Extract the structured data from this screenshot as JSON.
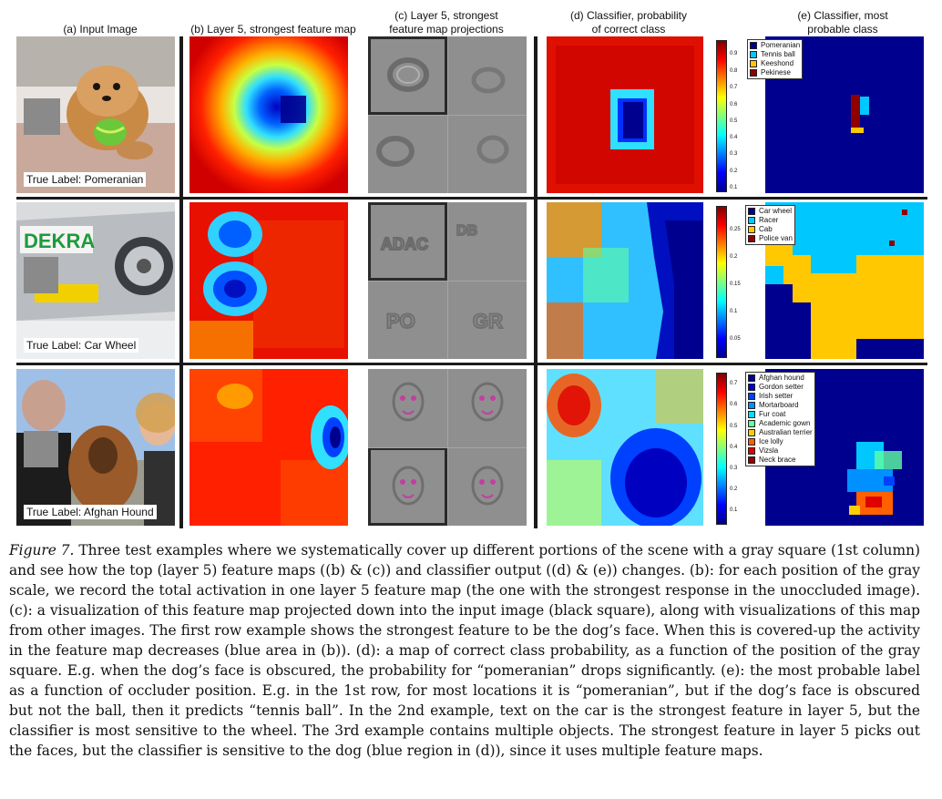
{
  "figure": {
    "column_titles": {
      "a": "(a) Input Image",
      "b": "(b) Layer 5, strongest feature map",
      "c_line1": "(c) Layer 5, strongest",
      "c_line2": "feature map projections",
      "d_line1": "(d) Classifier, probability",
      "d_line2": "of correct class",
      "e_line1": "(e) Classifier, most",
      "e_line2": "probable class"
    },
    "rows": [
      {
        "true_label": "True Label: Pomeranian",
        "colorbar_ticks": [
          "0.9",
          "0.8",
          "0.7",
          "0.6",
          "0.5",
          "0.4",
          "0.3",
          "0.2",
          "0.1"
        ],
        "legend": [
          {
            "label": "Pomeranian",
            "color": "#00008f"
          },
          {
            "label": "Tennis ball",
            "color": "#00c8ff"
          },
          {
            "label": "Keeshond",
            "color": "#ffc800"
          },
          {
            "label": "Pekinese",
            "color": "#8f0000"
          }
        ]
      },
      {
        "true_label": "True Label: Car Wheel",
        "colorbar_ticks": [
          "0.25",
          "0.2",
          "0.15",
          "0.1",
          "0.05"
        ],
        "legend": [
          {
            "label": "Car wheel",
            "color": "#00008f"
          },
          {
            "label": "Racer",
            "color": "#00c8ff"
          },
          {
            "label": "Cab",
            "color": "#ffc800"
          },
          {
            "label": "Police van",
            "color": "#8f0000"
          }
        ]
      },
      {
        "true_label": "True Label: Afghan Hound",
        "colorbar_ticks": [
          "0.7",
          "0.6",
          "0.5",
          "0.4",
          "0.3",
          "0.2",
          "0.1"
        ],
        "legend": [
          {
            "label": "Afghan hound",
            "color": "#00008f"
          },
          {
            "label": "Gordon setter",
            "color": "#0000d0"
          },
          {
            "label": "Irish setter",
            "color": "#0040ff"
          },
          {
            "label": "Mortarboard",
            "color": "#0090ff"
          },
          {
            "label": "Fur coat",
            "color": "#00e0ff"
          },
          {
            "label": "Academic gown",
            "color": "#60ff9f"
          },
          {
            "label": "Australian terrier",
            "color": "#ffd000"
          },
          {
            "label": "Ice lolly",
            "color": "#ff6000"
          },
          {
            "label": "Vizsla",
            "color": "#e00000"
          },
          {
            "label": "Neck brace",
            "color": "#8f0000"
          }
        ]
      }
    ]
  },
  "caption": {
    "label": "Figure 7.",
    "text": "Three test examples where we systematically cover up different portions of the scene with a gray square (1st column) and see how the top (layer 5) feature maps ((b) & (c)) and classifier output ((d) & (e)) changes. (b): for each position of the gray scale, we record the total activation in one layer 5 feature map (the one with the strongest response in the unoccluded image). (c): a visualization of this feature map projected down into the input image (black square), along with visualizations of this map from other images. The first row example shows the strongest feature to be the dog’s face. When this is covered-up the activity in the feature map decreases (blue area in (b)). (d): a map of correct class probability, as a function of the position of the gray square. E.g. when the dog’s face is obscured, the probability for “pomeranian” drops significantly. (e): the most probable label as a function of occluder position. E.g. in the 1st row, for most locations it is “pomeranian”, but if the dog’s face is obscured but not the ball, then it predicts “tennis ball”. In the 2nd example, text on the car is the strongest feature in layer 5, but the classifier is most sensitive to the wheel. The 3rd example contains multiple objects. The strongest feature in layer 5 picks out the faces, but the classifier is sensitive to the dog (blue region in (d)), since it uses multiple feature maps."
  }
}
